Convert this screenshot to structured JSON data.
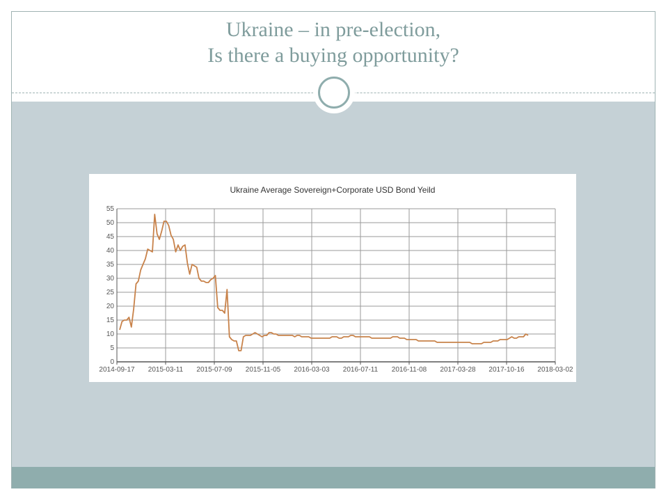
{
  "slide": {
    "title_line1": "Ukraine – in pre-election,",
    "title_line2": "Is there a buying opportunity?",
    "colors": {
      "title": "#7f9c9c",
      "content_band": "#c5d1d6",
      "footer_band": "#8fadad",
      "series_line": "#c8824a"
    }
  },
  "chart_data": {
    "type": "line",
    "title": "Ukraine Average Sovereign+Corporate  USD Bond Yeild",
    "xlabel": "",
    "ylabel": "",
    "ylim": [
      0,
      55
    ],
    "yticks": [
      0,
      5,
      10,
      15,
      20,
      25,
      30,
      35,
      40,
      45,
      50,
      55
    ],
    "x_tick_labels": [
      "2014-09-17",
      "2015-03-11",
      "2015-07-09",
      "2015-11-05",
      "2016-03-03",
      "2016-07-11",
      "2016-11-08",
      "2017-03-28",
      "2017-10-16",
      "2018-03-02"
    ],
    "grid": true,
    "legend": "none",
    "series": [
      {
        "values": [
          11.5,
          14.5,
          15,
          15,
          16,
          12.5,
          19,
          28,
          29,
          33,
          35,
          37,
          40.5,
          40,
          39.5,
          53,
          46,
          44,
          47,
          50.5,
          50.5,
          49,
          45.5,
          44,
          39.5,
          42,
          40,
          41.5,
          42,
          35.5,
          31.5,
          35,
          34.5,
          34,
          30,
          29,
          29,
          28.5,
          28.5,
          29.5,
          30,
          31,
          19.5,
          18.5,
          18.5,
          17.5,
          26,
          9,
          8,
          7.5,
          7.5,
          4,
          4,
          9,
          9.5,
          9.5,
          9.5,
          10,
          10.5,
          10,
          9.5,
          9,
          9.5,
          9.5,
          10.5,
          10.5,
          10,
          10,
          9.5,
          9.5,
          9.5,
          9.5,
          9.5,
          9.5,
          9.5,
          9,
          9.5,
          9.5,
          9,
          9,
          9,
          9,
          8.5,
          8.5,
          8.5,
          8.5,
          8.5,
          8.5,
          8.5,
          8.5,
          8.5,
          9,
          9,
          9,
          8.5,
          8.5,
          9,
          9,
          9,
          9.5,
          9.5,
          9,
          9,
          9,
          9,
          9,
          9,
          9,
          8.5,
          8.5,
          8.5,
          8.5,
          8.5,
          8.5,
          8.5,
          8.5,
          8.5,
          9,
          9,
          9,
          8.5,
          8.5,
          8.5,
          8,
          8,
          8,
          8,
          8,
          7.5,
          7.5,
          7.5,
          7.5,
          7.5,
          7.5,
          7.5,
          7.5,
          7,
          7,
          7,
          7,
          7,
          7,
          7,
          7,
          7,
          7,
          7,
          7,
          7,
          7,
          7,
          6.5,
          6.5,
          6.5,
          6.5,
          6.5,
          7,
          7,
          7,
          7,
          7.5,
          7.5,
          7.5,
          8,
          8,
          8,
          8,
          8.5,
          9,
          8.5,
          8.5,
          9,
          9,
          9,
          10,
          9.5
        ]
      }
    ]
  }
}
